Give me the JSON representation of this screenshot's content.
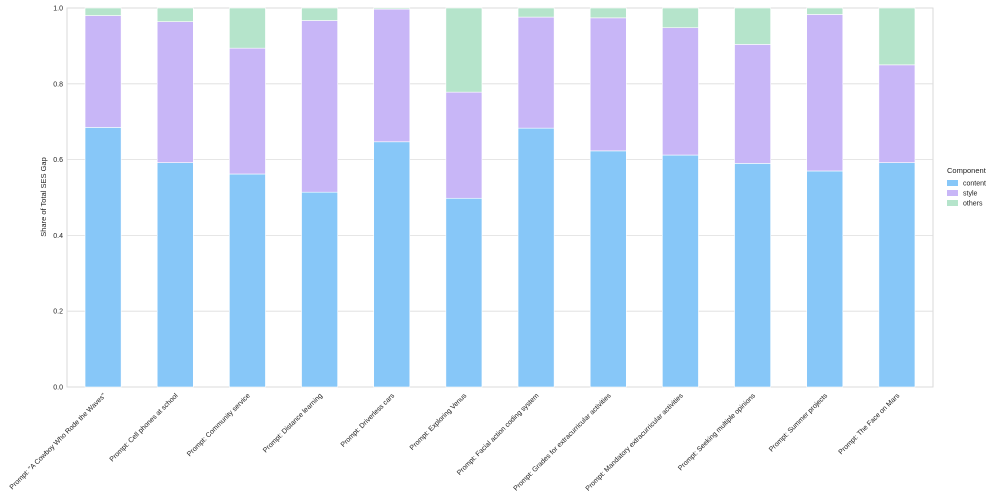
{
  "chart_data": {
    "type": "bar",
    "stacked": true,
    "title": "",
    "xlabel": "",
    "ylabel": "Share of Total SES Gap",
    "ylim": [
      0,
      1
    ],
    "yticks": [
      "0.0",
      "0.2",
      "0.4",
      "0.6",
      "0.8",
      "1.0"
    ],
    "grid": true,
    "legend_position": "right",
    "legend_title": "Component",
    "categories": [
      "Prompt: \"A Cowboy Who Rode the Waves\"",
      "Prompt: Cell phones at school",
      "Prompt: Community service",
      "Prompt: Distance learning",
      "Prompt: Driverless cars",
      "Prompt: Exploring Venus",
      "Prompt: Facial action coding system",
      "Prompt: Grades for extracurricular activities",
      "Prompt: Mandatory extracurricular activities",
      "Prompt: Seeking multiple opinions",
      "Prompt: Summer projects",
      "Prompt: The Face on Mars"
    ],
    "series": [
      {
        "name": "content",
        "color": "#87c7f8",
        "values": [
          0.685,
          0.592,
          0.562,
          0.514,
          0.647,
          0.498,
          0.683,
          0.623,
          0.612,
          0.59,
          0.57,
          0.592
        ]
      },
      {
        "name": "style",
        "color": "#c8b6f7",
        "values": [
          0.295,
          0.372,
          0.332,
          0.453,
          0.35,
          0.28,
          0.293,
          0.351,
          0.336,
          0.314,
          0.413,
          0.258
        ]
      },
      {
        "name": "others",
        "color": "#b5e4cb",
        "values": [
          0.02,
          0.036,
          0.106,
          0.033,
          0.003,
          0.222,
          0.024,
          0.026,
          0.052,
          0.096,
          0.017,
          0.15
        ]
      }
    ]
  }
}
